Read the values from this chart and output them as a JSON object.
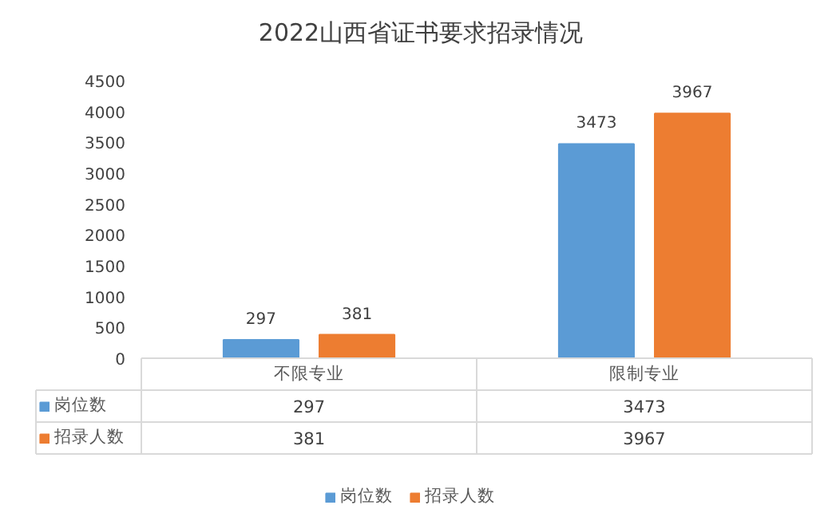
{
  "chart_data": {
    "type": "bar",
    "title": "2022山西省证书要求招录情况",
    "categories": [
      "不限专业",
      "限制专业"
    ],
    "series": [
      {
        "name": "岗位数",
        "color": "#5b9bd5",
        "values": [
          297,
          3473
        ],
        "value_labels": [
          "297",
          "3473"
        ]
      },
      {
        "name": "招录人数",
        "color": "#ed7d31",
        "values": [
          381,
          3967
        ],
        "value_labels": [
          "381",
          "3967"
        ]
      }
    ],
    "ylim": [
      0,
      4500
    ],
    "yticks": [
      0,
      500,
      1000,
      1500,
      2000,
      2500,
      3000,
      3500,
      4000,
      4500
    ],
    "annotations": [
      "297",
      "3473",
      "381",
      "3967"
    ],
    "grid": false,
    "data_labels": true,
    "legend": "bottom"
  }
}
